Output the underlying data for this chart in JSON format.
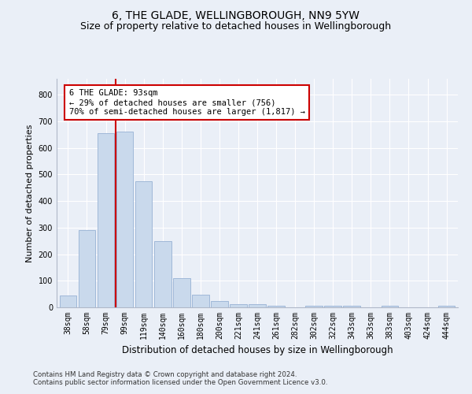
{
  "title": "6, THE GLADE, WELLINGBOROUGH, NN9 5YW",
  "subtitle": "Size of property relative to detached houses in Wellingborough",
  "xlabel": "Distribution of detached houses by size in Wellingborough",
  "ylabel": "Number of detached properties",
  "categories": [
    "38sqm",
    "58sqm",
    "79sqm",
    "99sqm",
    "119sqm",
    "140sqm",
    "160sqm",
    "180sqm",
    "200sqm",
    "221sqm",
    "241sqm",
    "261sqm",
    "282sqm",
    "302sqm",
    "322sqm",
    "343sqm",
    "363sqm",
    "383sqm",
    "403sqm",
    "424sqm",
    "444sqm"
  ],
  "values": [
    45,
    290,
    655,
    660,
    475,
    250,
    110,
    48,
    25,
    13,
    13,
    7,
    0,
    7,
    7,
    5,
    0,
    5,
    0,
    0,
    5
  ],
  "bar_color": "#c9d9ec",
  "bar_edge_color": "#a0b8d8",
  "vline_x_index": 2.5,
  "vline_color": "#cc0000",
  "annotation_text": "6 THE GLADE: 93sqm\n← 29% of detached houses are smaller (756)\n70% of semi-detached houses are larger (1,817) →",
  "annotation_box_color": "#ffffff",
  "annotation_box_edge_color": "#cc0000",
  "ylim": [
    0,
    860
  ],
  "yticks": [
    0,
    100,
    200,
    300,
    400,
    500,
    600,
    700,
    800
  ],
  "footer_line1": "Contains HM Land Registry data © Crown copyright and database right 2024.",
  "footer_line2": "Contains public sector information licensed under the Open Government Licence v3.0.",
  "bg_color": "#eaeff7",
  "plot_bg_color": "#eaeff7",
  "title_fontsize": 10,
  "subtitle_fontsize": 9,
  "tick_fontsize": 7,
  "xlabel_fontsize": 8.5,
  "ylabel_fontsize": 8
}
